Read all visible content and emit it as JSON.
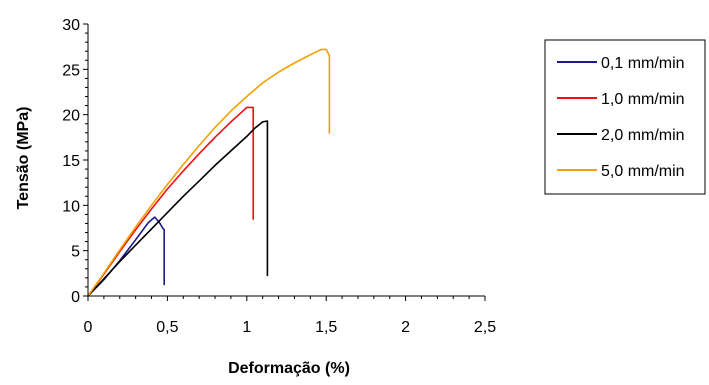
{
  "chart_data": {
    "type": "line",
    "title": "",
    "xlabel": "Deformação (%)",
    "ylabel": "Tensão (MPa)",
    "xlim": [
      0,
      2.5
    ],
    "ylim": [
      0,
      30
    ],
    "xticks": [
      0,
      0.5,
      1,
      1.5,
      2,
      2.5
    ],
    "xtick_labels": [
      "0",
      "0,5",
      "1",
      "1,5",
      "2",
      "2,5"
    ],
    "yticks": [
      0,
      5,
      10,
      15,
      20,
      25,
      30
    ],
    "ytick_labels": [
      "0",
      "5",
      "10",
      "15",
      "20",
      "25",
      "30"
    ],
    "grid": false,
    "legend_position": "right",
    "series": [
      {
        "name": "0,1 mm/min",
        "color": "#1a1a8c",
        "x": [
          0,
          0.1,
          0.2,
          0.3,
          0.38,
          0.42,
          0.45,
          0.47,
          0.48,
          0.48
        ],
        "y": [
          0,
          1.8,
          3.9,
          6.2,
          8.1,
          8.7,
          8.1,
          7.5,
          7.3,
          1.2
        ]
      },
      {
        "name": "1,0 mm/min",
        "color": "#ee1111",
        "x": [
          0,
          0.1,
          0.2,
          0.3,
          0.4,
          0.5,
          0.6,
          0.7,
          0.8,
          0.9,
          0.95,
          1.0,
          1.04,
          1.04
        ],
        "y": [
          0,
          2.4,
          4.9,
          7.3,
          9.6,
          11.8,
          13.8,
          15.7,
          17.5,
          19.2,
          20.0,
          20.8,
          20.8,
          8.4
        ]
      },
      {
        "name": "2,0 mm/min",
        "color": "#000000",
        "x": [
          0,
          0.1,
          0.2,
          0.3,
          0.4,
          0.5,
          0.6,
          0.7,
          0.8,
          0.9,
          1.0,
          1.05,
          1.1,
          1.13,
          1.13
        ],
        "y": [
          0,
          1.9,
          3.8,
          5.6,
          7.4,
          9.2,
          11.0,
          12.7,
          14.4,
          16.0,
          17.6,
          18.5,
          19.2,
          19.3,
          2.2
        ]
      },
      {
        "name": "5,0 mm/min",
        "color": "#f5a000",
        "x": [
          0,
          0.1,
          0.2,
          0.3,
          0.4,
          0.5,
          0.6,
          0.7,
          0.8,
          0.9,
          1.0,
          1.1,
          1.2,
          1.3,
          1.4,
          1.47,
          1.5,
          1.52,
          1.52
        ],
        "y": [
          0,
          2.5,
          5.1,
          7.6,
          10.0,
          12.3,
          14.5,
          16.6,
          18.6,
          20.4,
          22.0,
          23.5,
          24.7,
          25.7,
          26.6,
          27.2,
          27.2,
          26.5,
          17.9
        ]
      }
    ]
  }
}
